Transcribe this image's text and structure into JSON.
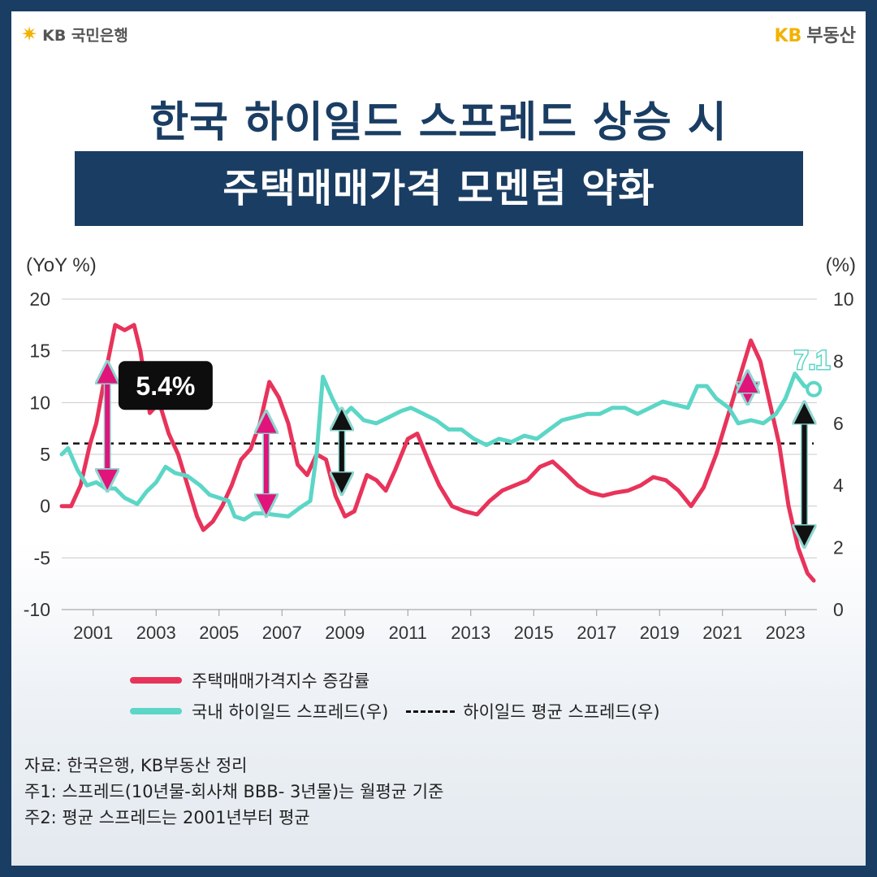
{
  "header": {
    "left_logo": "KB 국민은행",
    "right_logo_kb": "KB",
    "right_logo_text": "부동산",
    "title_line1": "한국 하이일드 스프레드 상승 시",
    "title_line2": "주택매매가격 모멘텀 약화"
  },
  "colors": {
    "red": "#e8335a",
    "teal": "#5cd6c6",
    "navy": "#1a3d63",
    "pink_arrow": "#e0147a",
    "black_arrow": "#111111"
  },
  "chart_data": {
    "type": "line",
    "left_unit": "(YoY %)",
    "right_unit": "(%)",
    "left_ylim": [
      -10,
      20
    ],
    "left_ticks": [
      "20",
      "15",
      "10",
      "5",
      "0",
      "-5",
      "-10"
    ],
    "right_ylim": [
      0,
      10
    ],
    "right_ticks": [
      "10",
      "8",
      "6",
      "4",
      "2",
      "0"
    ],
    "xlim": [
      2000,
      2024
    ],
    "x_ticks": [
      "2001",
      "2003",
      "2005",
      "2007",
      "2009",
      "2011",
      "2013",
      "2015",
      "2017",
      "2019",
      "2021",
      "2023"
    ],
    "series": [
      {
        "name": "주택매매가격지수 증감률",
        "axis": "left",
        "points": [
          [
            2000.0,
            0
          ],
          [
            2000.3,
            0
          ],
          [
            2000.6,
            2
          ],
          [
            2000.9,
            6
          ],
          [
            2001.1,
            8
          ],
          [
            2001.4,
            13
          ],
          [
            2001.7,
            17.5
          ],
          [
            2002.0,
            17
          ],
          [
            2002.3,
            17.5
          ],
          [
            2002.5,
            15
          ],
          [
            2002.8,
            9
          ],
          [
            2003.1,
            10
          ],
          [
            2003.4,
            7
          ],
          [
            2003.7,
            5
          ],
          [
            2004.0,
            2
          ],
          [
            2004.3,
            -1
          ],
          [
            2004.5,
            -2.3
          ],
          [
            2004.8,
            -1.5
          ],
          [
            2005.1,
            0
          ],
          [
            2005.4,
            2
          ],
          [
            2005.7,
            4.5
          ],
          [
            2006.0,
            5.5
          ],
          [
            2006.3,
            8
          ],
          [
            2006.6,
            12
          ],
          [
            2006.9,
            10.5
          ],
          [
            2007.2,
            8
          ],
          [
            2007.5,
            4
          ],
          [
            2007.8,
            3
          ],
          [
            2008.1,
            5
          ],
          [
            2008.4,
            4.5
          ],
          [
            2008.7,
            1
          ],
          [
            2009.0,
            -1
          ],
          [
            2009.3,
            -0.5
          ],
          [
            2009.7,
            3
          ],
          [
            2010.0,
            2.5
          ],
          [
            2010.3,
            1.5
          ],
          [
            2010.6,
            3.5
          ],
          [
            2011.0,
            6.5
          ],
          [
            2011.3,
            7
          ],
          [
            2011.7,
            4
          ],
          [
            2012.0,
            2
          ],
          [
            2012.4,
            0
          ],
          [
            2012.8,
            -0.5
          ],
          [
            2013.2,
            -0.8
          ],
          [
            2013.6,
            0.5
          ],
          [
            2014.0,
            1.5
          ],
          [
            2014.4,
            2
          ],
          [
            2014.8,
            2.5
          ],
          [
            2015.2,
            3.8
          ],
          [
            2015.6,
            4.3
          ],
          [
            2016.0,
            3.2
          ],
          [
            2016.4,
            2
          ],
          [
            2016.8,
            1.3
          ],
          [
            2017.2,
            1
          ],
          [
            2017.6,
            1.3
          ],
          [
            2018.0,
            1.5
          ],
          [
            2018.4,
            2
          ],
          [
            2018.8,
            2.8
          ],
          [
            2019.2,
            2.5
          ],
          [
            2019.6,
            1.5
          ],
          [
            2020.0,
            0
          ],
          [
            2020.4,
            1.8
          ],
          [
            2020.8,
            5
          ],
          [
            2021.2,
            9
          ],
          [
            2021.6,
            13
          ],
          [
            2021.9,
            16
          ],
          [
            2022.2,
            14
          ],
          [
            2022.5,
            10
          ],
          [
            2022.8,
            6
          ],
          [
            2023.1,
            0
          ],
          [
            2023.4,
            -4
          ],
          [
            2023.7,
            -6.5
          ],
          [
            2023.9,
            -7.2
          ]
        ]
      },
      {
        "name": "국내 하이일드 스프레드(우)",
        "axis": "right",
        "points": [
          [
            2000.0,
            5
          ],
          [
            2000.2,
            5.2
          ],
          [
            2000.5,
            4.5
          ],
          [
            2000.8,
            4
          ],
          [
            2001.1,
            4.1
          ],
          [
            2001.4,
            3.9
          ],
          [
            2001.7,
            3.9
          ],
          [
            2002.0,
            3.6
          ],
          [
            2002.4,
            3.4
          ],
          [
            2002.7,
            3.8
          ],
          [
            2003.0,
            4.1
          ],
          [
            2003.3,
            4.6
          ],
          [
            2003.6,
            4.4
          ],
          [
            2004.0,
            4.3
          ],
          [
            2004.4,
            4
          ],
          [
            2004.7,
            3.7
          ],
          [
            2005.0,
            3.6
          ],
          [
            2005.3,
            3.5
          ],
          [
            2005.5,
            3
          ],
          [
            2005.8,
            2.9
          ],
          [
            2006.1,
            3.1
          ],
          [
            2006.4,
            3.1
          ],
          [
            2006.8,
            3.05
          ],
          [
            2007.2,
            3
          ],
          [
            2007.6,
            3.3
          ],
          [
            2007.9,
            3.5
          ],
          [
            2008.1,
            5
          ],
          [
            2008.3,
            7.5
          ],
          [
            2008.6,
            6.8
          ],
          [
            2008.9,
            6.2
          ],
          [
            2009.2,
            6.5
          ],
          [
            2009.6,
            6.1
          ],
          [
            2010.0,
            6
          ],
          [
            2010.4,
            6.2
          ],
          [
            2010.8,
            6.4
          ],
          [
            2011.1,
            6.5
          ],
          [
            2011.5,
            6.3
          ],
          [
            2011.9,
            6.1
          ],
          [
            2012.3,
            5.8
          ],
          [
            2012.7,
            5.8
          ],
          [
            2013.1,
            5.5
          ],
          [
            2013.5,
            5.3
          ],
          [
            2013.9,
            5.5
          ],
          [
            2014.3,
            5.4
          ],
          [
            2014.7,
            5.6
          ],
          [
            2015.1,
            5.5
          ],
          [
            2015.5,
            5.8
          ],
          [
            2015.9,
            6.1
          ],
          [
            2016.3,
            6.2
          ],
          [
            2016.7,
            6.3
          ],
          [
            2017.1,
            6.3
          ],
          [
            2017.5,
            6.5
          ],
          [
            2017.9,
            6.5
          ],
          [
            2018.3,
            6.3
          ],
          [
            2018.7,
            6.5
          ],
          [
            2019.1,
            6.7
          ],
          [
            2019.5,
            6.6
          ],
          [
            2019.9,
            6.5
          ],
          [
            2020.2,
            7.2
          ],
          [
            2020.5,
            7.2
          ],
          [
            2020.8,
            6.8
          ],
          [
            2021.2,
            6.5
          ],
          [
            2021.5,
            6.0
          ],
          [
            2021.9,
            6.1
          ],
          [
            2022.3,
            6.0
          ],
          [
            2022.7,
            6.3
          ],
          [
            2023.0,
            6.8
          ],
          [
            2023.3,
            7.6
          ],
          [
            2023.6,
            7.2
          ],
          [
            2023.9,
            7.1
          ]
        ]
      },
      {
        "name": "하이일드 평균 스프레드(우)",
        "axis": "right",
        "points": [
          [
            2000.0,
            5.35
          ],
          [
            2023.9,
            5.35
          ]
        ]
      }
    ],
    "annotations": [
      {
        "label": "5.4%",
        "x": 2003.3,
        "y": 11.5
      },
      {
        "label": "7.1",
        "x": 2023.9,
        "y": 7.1
      }
    ],
    "arrows": [
      {
        "x": 2001.45,
        "y1": 4.0,
        "y2": 7.8,
        "color": "pink",
        "axis": "right"
      },
      {
        "x": 2006.5,
        "y1": 3.2,
        "y2": 6.2,
        "color": "pink",
        "axis": "right"
      },
      {
        "x": 2008.9,
        "y1": 3.9,
        "y2": 6.3,
        "color": "black",
        "axis": "right"
      },
      {
        "x": 2021.8,
        "y1": 6.8,
        "y2": 7.5,
        "color": "pink",
        "axis": "right"
      },
      {
        "x": 2023.6,
        "y1": 2.2,
        "y2": 6.5,
        "color": "black",
        "axis": "right"
      }
    ]
  },
  "notes": {
    "source": "자료: 한국은행, KB부동산 정리",
    "note1": "주1: 스프레드(10년물-회사채 BBB- 3년물)는 월평균 기준",
    "note2": "주2: 평균 스프레드는 2001년부터 평균"
  }
}
